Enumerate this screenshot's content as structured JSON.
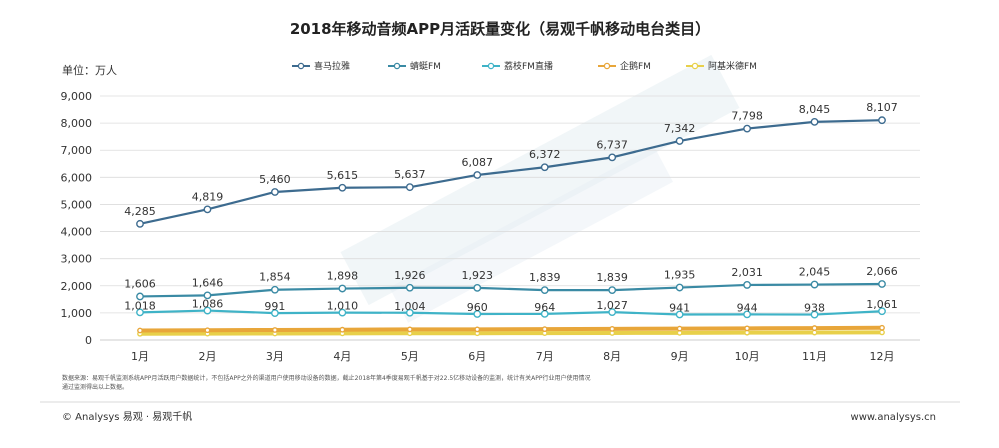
{
  "footer": {
    "left": "© Analysys 易观 · 易观千帆",
    "right": "www.analysys.cn"
  },
  "note": {
    "line1": "数据来源：易观千帆监测系统APP月活跃用户数据统计，不包括APP之外的渠道用户使用移动设备的数据，截止2018年第4季度易观千帆基于对22.5亿移动设备的监测，统计有关APP行业用户使用情况",
    "line2": "通过监测得出以上数据。"
  },
  "colors": {
    "ximalaya": "#3d6b8f",
    "qingting": "#3a8aa4",
    "lizhi": "#3fb3c7",
    "qie": "#e8a63a",
    "abmm": "#e8d04a",
    "grid": "#dcdcdc",
    "watermark": "#e6eef3"
  },
  "chart_data": {
    "type": "line",
    "title": "2018年移动音频APP月活跃量变化（易观千帆移动电台类目）",
    "unit_label": "单位：万人",
    "xlabel": "",
    "ylabel": "",
    "ylim": [
      0,
      9000
    ],
    "yticks": [
      0,
      1000,
      2000,
      3000,
      4000,
      5000,
      6000,
      7000,
      8000,
      9000
    ],
    "ytick_labels": [
      "0",
      "1,000",
      "2,000",
      "3,000",
      "4,000",
      "5,000",
      "6,000",
      "7,000",
      "8,000",
      "9,000"
    ],
    "grid": true,
    "legend_position": "top",
    "categories": [
      "1月",
      "2月",
      "3月",
      "4月",
      "5月",
      "6月",
      "7月",
      "8月",
      "9月",
      "10月",
      "11月",
      "12月"
    ],
    "series": [
      {
        "key": "ximalaya",
        "name": "喜马拉雅",
        "values": [
          4285,
          4819,
          5460,
          5615,
          5637,
          6087,
          6372,
          6737,
          7342,
          7798,
          8045,
          8107
        ],
        "labels": [
          "4,285",
          "4,819",
          "5,460",
          "5,615",
          "5,637",
          "6,087",
          "6,372",
          "6,737",
          "7,342",
          "7,798",
          "8,045",
          "8,107"
        ]
      },
      {
        "key": "qingting",
        "name": "蜻蜓FM",
        "values": [
          1606,
          1646,
          1854,
          1898,
          1926,
          1923,
          1839,
          1839,
          1935,
          2031,
          2045,
          2066
        ],
        "labels": [
          "1,606",
          "1,646",
          "1,854",
          "1,898",
          "1,926",
          "1,923",
          "1,839",
          "1,839",
          "1,935",
          "2,031",
          "2,045",
          "2,066"
        ]
      },
      {
        "key": "lizhi",
        "name": "荔枝FM直播",
        "values": [
          1018,
          1086,
          991,
          1010,
          1004,
          960,
          964,
          1027,
          941,
          944,
          938,
          1061
        ],
        "labels": [
          "1,018",
          "1,086",
          "991",
          "1,010",
          "1,004",
          "960",
          "964",
          "1,027",
          "941",
          "944",
          "938",
          "1,061"
        ]
      },
      {
        "key": "qie",
        "name": "企鹅FM",
        "values": [
          350,
          360,
          370,
          380,
          390,
          390,
          400,
          410,
          420,
          430,
          440,
          450
        ],
        "labels": []
      },
      {
        "key": "abmm",
        "name": "阿基米德FM",
        "values": [
          230,
          235,
          240,
          245,
          250,
          250,
          255,
          260,
          265,
          270,
          275,
          280
        ],
        "labels": []
      }
    ]
  }
}
